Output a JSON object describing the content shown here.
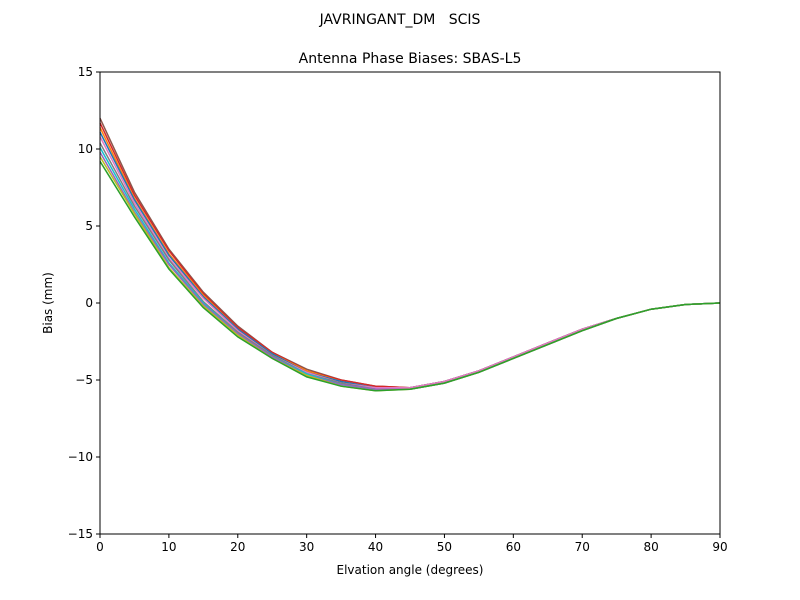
{
  "chart_data": {
    "type": "line",
    "suptitle": "JAVRINGANT_DM   SCIS",
    "title": "Antenna Phase Biases: SBAS-L5",
    "xlabel": "Elvation angle (degrees)",
    "ylabel": "Bias (mm)",
    "xlim": [
      0,
      90
    ],
    "ylim": [
      -15,
      15
    ],
    "xticks": [
      0,
      10,
      20,
      30,
      40,
      50,
      60,
      70,
      80,
      90
    ],
    "yticks": [
      15,
      10,
      5,
      0,
      -5,
      -10,
      -15
    ],
    "ytick_labels": [
      "15",
      "10",
      "5",
      "0",
      "−5",
      "−10",
      "−15"
    ],
    "grid": false,
    "x": [
      0,
      5,
      10,
      15,
      20,
      25,
      30,
      35,
      40,
      45,
      50,
      55,
      60,
      65,
      70,
      75,
      80,
      85,
      90
    ],
    "series": [
      {
        "color": "#8c564b",
        "values": [
          12.0,
          7.2,
          3.5,
          0.7,
          -1.5,
          -3.2,
          -4.3,
          -5.0,
          -5.4,
          -5.5,
          -5.1,
          -4.4,
          -3.5,
          -2.6,
          -1.7,
          -1.0,
          -0.4,
          -0.1,
          0.0
        ]
      },
      {
        "color": "#d62728",
        "values": [
          11.7,
          7.0,
          3.4,
          0.6,
          -1.6,
          -3.2,
          -4.4,
          -5.0,
          -5.4,
          -5.5,
          -5.1,
          -4.4,
          -3.5,
          -2.6,
          -1.7,
          -1.0,
          -0.4,
          -0.1,
          0.0
        ]
      },
      {
        "color": "#ff7f0e",
        "values": [
          11.4,
          6.8,
          3.2,
          0.5,
          -1.7,
          -3.3,
          -4.4,
          -5.1,
          -5.5,
          -5.5,
          -5.1,
          -4.4,
          -3.5,
          -2.6,
          -1.7,
          -1.0,
          -0.4,
          -0.1,
          0.0
        ]
      },
      {
        "color": "#1f77b4",
        "values": [
          11.1,
          6.7,
          3.1,
          0.4,
          -1.7,
          -3.3,
          -4.5,
          -5.1,
          -5.5,
          -5.5,
          -5.1,
          -4.4,
          -3.5,
          -2.6,
          -1.7,
          -1.0,
          -0.4,
          -0.1,
          0.0
        ]
      },
      {
        "color": "#e377c2",
        "values": [
          10.8,
          6.5,
          2.9,
          0.3,
          -1.8,
          -3.4,
          -4.5,
          -5.2,
          -5.5,
          -5.5,
          -5.1,
          -4.4,
          -3.5,
          -2.6,
          -1.7,
          -1.0,
          -0.4,
          -0.1,
          0.0
        ]
      },
      {
        "color": "#7f7f7f",
        "values": [
          10.4,
          6.3,
          2.8,
          0.1,
          -1.9,
          -3.4,
          -4.6,
          -5.2,
          -5.6,
          -5.6,
          -5.2,
          -4.5,
          -3.6,
          -2.7,
          -1.8,
          -1.0,
          -0.4,
          -0.1,
          0.0
        ]
      },
      {
        "color": "#17becf",
        "values": [
          10.1,
          6.1,
          2.6,
          0.0,
          -2.0,
          -3.5,
          -4.6,
          -5.3,
          -5.6,
          -5.6,
          -5.2,
          -4.5,
          -3.6,
          -2.7,
          -1.8,
          -1.0,
          -0.4,
          -0.1,
          0.0
        ]
      },
      {
        "color": "#9467bd",
        "values": [
          9.8,
          5.9,
          2.5,
          -0.1,
          -2.0,
          -3.5,
          -4.7,
          -5.3,
          -5.6,
          -5.6,
          -5.2,
          -4.5,
          -3.6,
          -2.7,
          -1.8,
          -1.0,
          -0.4,
          -0.1,
          0.0
        ]
      },
      {
        "color": "#bcbd22",
        "values": [
          9.5,
          5.8,
          2.3,
          -0.2,
          -2.1,
          -3.6,
          -4.7,
          -5.4,
          -5.7,
          -5.6,
          -5.2,
          -4.5,
          -3.6,
          -2.7,
          -1.8,
          -1.0,
          -0.4,
          -0.1,
          0.0
        ]
      },
      {
        "color": "#2ca02c",
        "values": [
          9.2,
          5.6,
          2.2,
          -0.3,
          -2.2,
          -3.6,
          -4.8,
          -5.4,
          -5.7,
          -5.6,
          -5.2,
          -4.5,
          -3.6,
          -2.7,
          -1.8,
          -1.0,
          -0.4,
          -0.1,
          0.0
        ]
      }
    ]
  }
}
